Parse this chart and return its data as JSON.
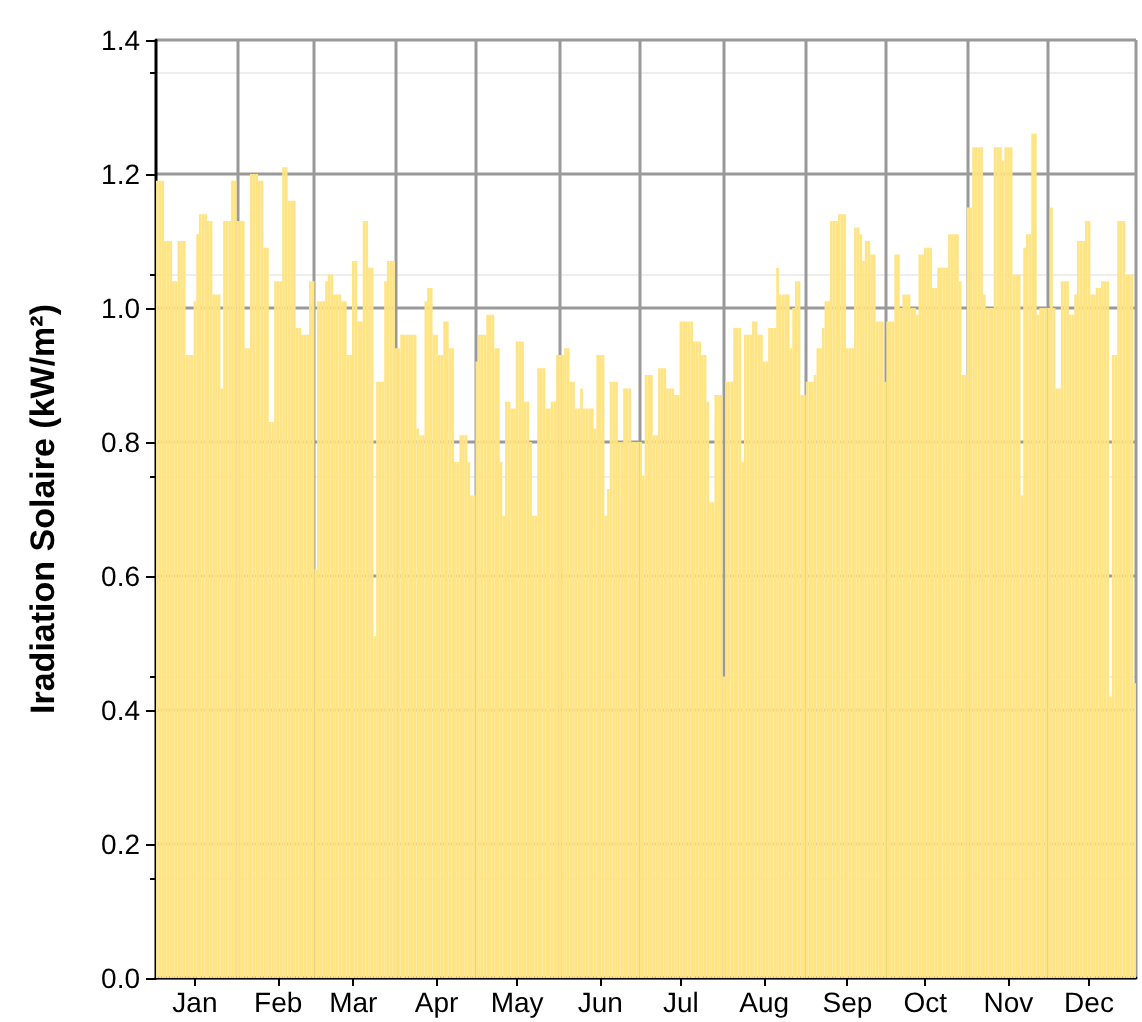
{
  "chart_data": {
    "type": "bar",
    "ylabel": "Iradiation Solaire (kW/m²)",
    "categories": [
      null,
      null,
      null,
      null,
      null,
      null,
      null,
      null,
      null,
      null,
      null,
      null,
      null,
      null,
      "Jan",
      null,
      null,
      null,
      null,
      null,
      null,
      null,
      null,
      null,
      null,
      null,
      null,
      null,
      null,
      null,
      null,
      null,
      null,
      null,
      null,
      null,
      null,
      null,
      null,
      null,
      null,
      null,
      null,
      null,
      null,
      "Feb",
      null,
      null,
      null,
      null,
      null,
      null,
      null,
      null,
      null,
      null,
      null,
      null,
      null,
      null,
      null,
      null,
      null,
      null,
      null,
      null,
      null,
      null,
      null,
      null,
      null,
      null,
      null,
      "Mar",
      null,
      null,
      null,
      null,
      null,
      null,
      null,
      null,
      null,
      null,
      null,
      null,
      null,
      null,
      null,
      null,
      null,
      null,
      null,
      null,
      null,
      null,
      null,
      null,
      null,
      null,
      null,
      null,
      null,
      null,
      "Apr",
      null,
      null,
      null,
      null,
      null,
      null,
      null,
      null,
      null,
      null,
      null,
      null,
      null,
      null,
      null,
      null,
      null,
      null,
      null,
      null,
      null,
      null,
      null,
      null,
      null,
      null,
      null,
      null,
      null,
      "May",
      null,
      null,
      null,
      null,
      null,
      null,
      null,
      null,
      null,
      null,
      null,
      null,
      null,
      null,
      null,
      null,
      null,
      null,
      null,
      null,
      null,
      null,
      null,
      null,
      null,
      null,
      null,
      null,
      null,
      null,
      "Jun",
      null,
      null,
      null,
      null,
      null,
      null,
      null,
      null,
      null,
      null,
      null,
      null,
      null,
      null,
      null,
      null,
      null,
      null,
      null,
      null,
      null,
      null,
      null,
      null,
      null,
      null,
      null,
      null,
      null,
      "Jul",
      null,
      null,
      null,
      null,
      null,
      null,
      null,
      null,
      null,
      null,
      null,
      null,
      null,
      null,
      null,
      null,
      null,
      null,
      null,
      null,
      null,
      null,
      null,
      null,
      null,
      null,
      null,
      null,
      null,
      null,
      "Aug",
      null,
      null,
      null,
      null,
      null,
      null,
      null,
      null,
      null,
      null,
      null,
      null,
      null,
      null,
      null,
      null,
      null,
      null,
      null,
      null,
      null,
      null,
      null,
      null,
      null,
      null,
      null,
      null,
      null,
      null,
      "Sep",
      null,
      null,
      null,
      null,
      null,
      null,
      null,
      null,
      null,
      null,
      null,
      null,
      null,
      null,
      null,
      null,
      null,
      null,
      null,
      null,
      null,
      null,
      null,
      null,
      null,
      null,
      null,
      null,
      "Oct",
      null,
      null,
      null,
      null,
      null,
      null,
      null,
      null,
      null,
      null,
      null,
      null,
      null,
      null,
      null,
      null,
      null,
      null,
      null,
      null,
      null,
      null,
      null,
      null,
      null,
      null,
      null,
      null,
      null,
      null,
      "Nov",
      null,
      null,
      null,
      null,
      null,
      null,
      null,
      null,
      null,
      null,
      null,
      null,
      null,
      null,
      null,
      null,
      null,
      null,
      null,
      null,
      null,
      null,
      null,
      null,
      null,
      null,
      null,
      null,
      null,
      "Dec",
      null,
      null,
      null,
      null,
      null,
      null,
      null,
      null,
      null,
      null,
      null,
      null,
      null,
      null,
      null,
      null,
      null
    ],
    "values": [
      1.19,
      1.19,
      1.19,
      1.1,
      1.1,
      1.1,
      1.04,
      1.04,
      1.1,
      1.1,
      1.1,
      0.93,
      0.93,
      0.93,
      1.01,
      1.11,
      1.14,
      1.14,
      1.14,
      1.13,
      1.13,
      1.02,
      1.02,
      1.02,
      0.88,
      1.13,
      1.13,
      1.13,
      1.19,
      1.19,
      1.13,
      1.13,
      1.13,
      0.94,
      0.94,
      1.2,
      1.2,
      1.2,
      1.19,
      1.19,
      1.09,
      1.09,
      0.83,
      0.83,
      1.04,
      1.04,
      1.04,
      1.21,
      1.21,
      1.16,
      1.16,
      1.16,
      0.97,
      0.97,
      0.96,
      0.96,
      0.96,
      1.04,
      1.04,
      0.61,
      1.01,
      1.01,
      1.01,
      1.04,
      1.05,
      1.05,
      1.02,
      1.02,
      1.02,
      1.01,
      1.01,
      0.93,
      0.93,
      1.07,
      1.07,
      0.98,
      0.98,
      1.13,
      1.13,
      1.06,
      1.06,
      0.51,
      0.89,
      0.89,
      0.89,
      1.04,
      1.07,
      1.07,
      1.07,
      0.94,
      0.94,
      0.96,
      0.96,
      0.96,
      0.96,
      0.96,
      0.96,
      0.82,
      0.81,
      0.81,
      1.01,
      1.03,
      1.03,
      0.96,
      0.96,
      0.93,
      0.93,
      0.98,
      0.98,
      0.94,
      0.94,
      0.77,
      0.77,
      0.81,
      0.81,
      0.81,
      0.77,
      0.72,
      0.72,
      0.92,
      0.96,
      0.96,
      0.96,
      0.99,
      0.99,
      0.99,
      0.94,
      0.94,
      0.77,
      0.69,
      0.86,
      0.86,
      0.85,
      0.85,
      0.95,
      0.95,
      0.95,
      0.86,
      0.86,
      0.8,
      0.69,
      0.69,
      0.91,
      0.91,
      0.91,
      0.85,
      0.85,
      0.86,
      0.86,
      0.93,
      0.93,
      0.93,
      0.94,
      0.94,
      0.89,
      0.89,
      0.85,
      0.85,
      0.88,
      0.85,
      0.85,
      0.85,
      0.85,
      0.82,
      0.93,
      0.93,
      0.93,
      0.69,
      0.73,
      0.89,
      0.89,
      0.89,
      0.8,
      0.8,
      0.88,
      0.88,
      0.88,
      0.8,
      0.8,
      0.8,
      0.8,
      0.75,
      0.9,
      0.9,
      0.9,
      0.81,
      0.81,
      0.91,
      0.91,
      0.91,
      0.88,
      0.88,
      0.88,
      0.87,
      0.87,
      0.98,
      0.98,
      0.98,
      0.98,
      0.98,
      0.95,
      0.95,
      0.95,
      0.93,
      0.93,
      0.86,
      0.71,
      0.71,
      0.87,
      0.87,
      0.87,
      0.45,
      0.89,
      0.89,
      0.89,
      0.97,
      0.97,
      0.97,
      0.77,
      0.96,
      0.96,
      0.96,
      0.98,
      0.98,
      0.96,
      0.96,
      0.92,
      0.92,
      0.97,
      0.97,
      0.97,
      1.06,
      1.02,
      1.02,
      1.02,
      1.02,
      0.94,
      1.0,
      1.04,
      1.04,
      0.87,
      0.87,
      0.89,
      0.89,
      0.89,
      0.9,
      0.94,
      0.94,
      0.97,
      1.01,
      1.01,
      1.13,
      1.13,
      1.13,
      1.14,
      1.14,
      1.14,
      0.94,
      0.94,
      0.94,
      1.12,
      1.12,
      1.11,
      1.07,
      1.1,
      1.1,
      1.08,
      1.08,
      0.98,
      0.98,
      0.98,
      0.89,
      0.98,
      0.98,
      0.98,
      1.08,
      1.08,
      1.0,
      1.02,
      1.02,
      1.02,
      1.0,
      1.0,
      0.99,
      1.08,
      1.08,
      1.09,
      1.09,
      1.09,
      1.03,
      1.03,
      1.06,
      1.06,
      1.06,
      1.06,
      1.11,
      1.11,
      1.11,
      1.11,
      1.04,
      0.9,
      0.9,
      1.15,
      1.15,
      1.24,
      1.24,
      1.24,
      1.24,
      1.02,
      1.0,
      1.0,
      1.0,
      1.24,
      1.24,
      1.24,
      1.22,
      1.24,
      1.24,
      1.24,
      1.05,
      1.05,
      1.05,
      0.72,
      1.09,
      1.11,
      1.11,
      1.26,
      1.26,
      0.99,
      1.0,
      1.0,
      1.0,
      1.0,
      1.15,
      1.0,
      0.88,
      0.88,
      1.04,
      1.04,
      1.04,
      0.99,
      0.99,
      1.02,
      1.1,
      1.1,
      1.1,
      1.13,
      1.13,
      1.02,
      1.02,
      1.03,
      1.03,
      1.04,
      1.04,
      1.04,
      0.42,
      0.93,
      0.93,
      1.13,
      1.13,
      1.13,
      1.05,
      1.05,
      1.05,
      0.44
    ],
    "color": "#ffe484",
    "ylim": [
      0,
      1.4
    ],
    "yticks": [
      {
        "value": 0,
        "label": "0.0"
      },
      {
        "value": 0.2,
        "label": "0.2"
      },
      {
        "value": 0.4,
        "label": "0.4"
      },
      {
        "value": 0.6,
        "label": "0.6"
      },
      {
        "value": 0.8,
        "label": "0.8"
      },
      {
        "value": 1,
        "label": "1.0"
      },
      {
        "value": 1.2,
        "label": "1.2"
      },
      {
        "value": 1.4,
        "label": "1.4"
      }
    ],
    "grid": true
  }
}
